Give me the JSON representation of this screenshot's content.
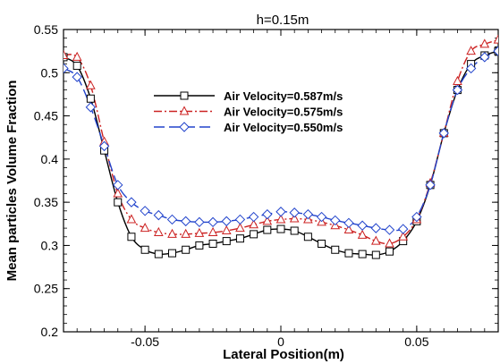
{
  "chart_data": {
    "type": "line",
    "title": "h=0.15m",
    "xlabel": "Lateral Position(m)",
    "ylabel": "Mean particles Volume Fraction",
    "xlim": [
      -0.08,
      0.08
    ],
    "ylim": [
      0.2,
      0.55
    ],
    "xticks": [
      -0.05,
      0,
      0.05
    ],
    "xtick_labels": [
      "-0.05",
      "0",
      "0.05"
    ],
    "yticks": [
      0.2,
      0.25,
      0.3,
      0.35,
      0.4,
      0.45,
      0.5,
      0.55
    ],
    "ytick_labels": [
      "0.2",
      "0.25",
      "0.3",
      "0.35",
      "0.4",
      "0.45",
      "0.5",
      "0.55"
    ],
    "grid": false,
    "legend_position": "upper-center",
    "series": [
      {
        "name": "Air Velocity=0.587m/s",
        "color": "#000000",
        "dash": "solid",
        "marker": "square",
        "x": [
          -0.08,
          -0.075,
          -0.07,
          -0.065,
          -0.06,
          -0.055,
          -0.05,
          -0.045,
          -0.04,
          -0.035,
          -0.03,
          -0.025,
          -0.02,
          -0.015,
          -0.01,
          -0.005,
          0.0,
          0.005,
          0.01,
          0.015,
          0.02,
          0.025,
          0.03,
          0.035,
          0.04,
          0.045,
          0.05,
          0.055,
          0.06,
          0.065,
          0.07,
          0.075,
          0.08
        ],
        "y": [
          0.518,
          0.508,
          0.47,
          0.41,
          0.35,
          0.31,
          0.295,
          0.29,
          0.291,
          0.295,
          0.3,
          0.302,
          0.305,
          0.308,
          0.313,
          0.318,
          0.319,
          0.317,
          0.31,
          0.302,
          0.295,
          0.291,
          0.29,
          0.289,
          0.293,
          0.305,
          0.328,
          0.37,
          0.43,
          0.48,
          0.51,
          0.52,
          0.525
        ]
      },
      {
        "name": "Air Velocity=0.575m/s",
        "color": "#cc2222",
        "dash": "dashdot",
        "marker": "triangle",
        "x": [
          -0.08,
          -0.075,
          -0.07,
          -0.065,
          -0.06,
          -0.055,
          -0.05,
          -0.045,
          -0.04,
          -0.035,
          -0.03,
          -0.025,
          -0.02,
          -0.015,
          -0.01,
          -0.005,
          0.0,
          0.005,
          0.01,
          0.015,
          0.02,
          0.025,
          0.03,
          0.035,
          0.04,
          0.045,
          0.05,
          0.055,
          0.06,
          0.065,
          0.07,
          0.075,
          0.08
        ],
        "y": [
          0.52,
          0.518,
          0.485,
          0.42,
          0.36,
          0.33,
          0.32,
          0.315,
          0.313,
          0.313,
          0.314,
          0.315,
          0.317,
          0.32,
          0.324,
          0.328,
          0.33,
          0.331,
          0.33,
          0.327,
          0.323,
          0.318,
          0.312,
          0.305,
          0.302,
          0.31,
          0.33,
          0.372,
          0.43,
          0.49,
          0.525,
          0.533,
          0.538
        ]
      },
      {
        "name": "Air Velocity=0.550m/s",
        "color": "#2244cc",
        "dash": "longdash",
        "marker": "diamond",
        "x": [
          -0.08,
          -0.075,
          -0.07,
          -0.065,
          -0.06,
          -0.055,
          -0.05,
          -0.045,
          -0.04,
          -0.035,
          -0.03,
          -0.025,
          -0.02,
          -0.015,
          -0.01,
          -0.005,
          0.0,
          0.005,
          0.01,
          0.015,
          0.02,
          0.025,
          0.03,
          0.035,
          0.04,
          0.045,
          0.05,
          0.055,
          0.06,
          0.065,
          0.07,
          0.075,
          0.08
        ],
        "y": [
          0.505,
          0.495,
          0.46,
          0.415,
          0.37,
          0.35,
          0.34,
          0.335,
          0.33,
          0.328,
          0.327,
          0.327,
          0.328,
          0.33,
          0.333,
          0.336,
          0.339,
          0.338,
          0.336,
          0.333,
          0.329,
          0.326,
          0.323,
          0.32,
          0.318,
          0.319,
          0.333,
          0.37,
          0.43,
          0.48,
          0.505,
          0.518,
          0.525
        ]
      }
    ]
  }
}
